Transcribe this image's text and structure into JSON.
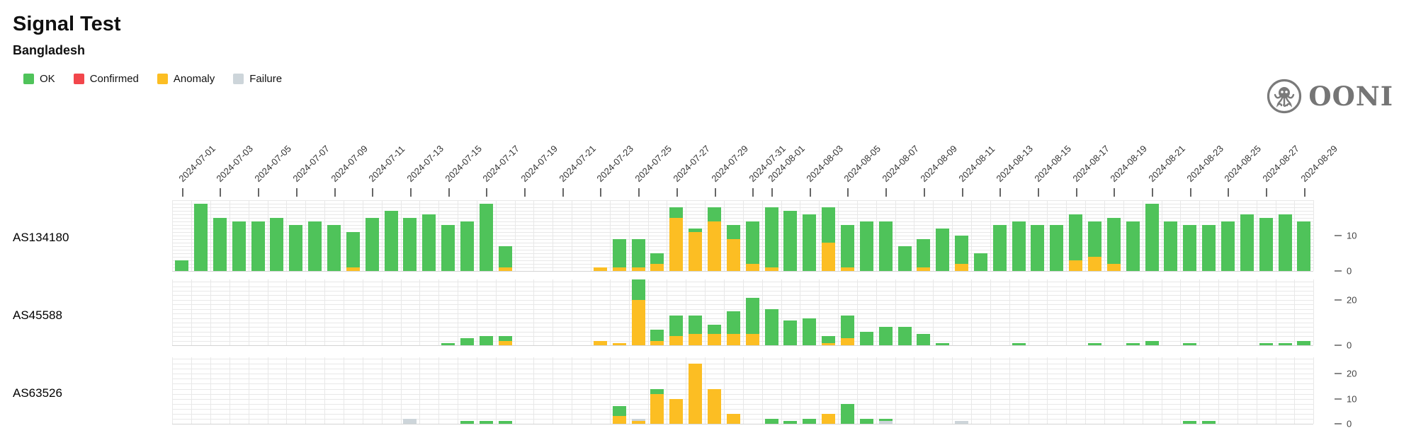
{
  "page": {
    "title": "Signal Test",
    "subtitle": "Bangladesh"
  },
  "logo": {
    "text": "OONI"
  },
  "legend": [
    {
      "label": "OK",
      "color_key": "ok"
    },
    {
      "label": "Confirmed",
      "color_key": "confirmed"
    },
    {
      "label": "Anomaly",
      "color_key": "anomaly"
    },
    {
      "label": "Failure",
      "color_key": "failure"
    }
  ],
  "chart_data": {
    "type": "bar",
    "stacked": true,
    "title": "Signal Test",
    "subtitle": "Bangladesh",
    "legend_position": "top-left",
    "grid": true,
    "stack_order_bottom_to_top": [
      "anomaly",
      "failure",
      "ok"
    ],
    "colors": {
      "ok": "#4fc35a",
      "confirmed": "#f2464b",
      "anomaly": "#fcbe23",
      "failure": "#cdd5da"
    },
    "dates": [
      "2024-07-01",
      "2024-07-02",
      "2024-07-03",
      "2024-07-04",
      "2024-07-05",
      "2024-07-06",
      "2024-07-07",
      "2024-07-08",
      "2024-07-09",
      "2024-07-10",
      "2024-07-11",
      "2024-07-12",
      "2024-07-13",
      "2024-07-14",
      "2024-07-15",
      "2024-07-16",
      "2024-07-17",
      "2024-07-18",
      "2024-07-19",
      "2024-07-20",
      "2024-07-21",
      "2024-07-22",
      "2024-07-23",
      "2024-07-24",
      "2024-07-25",
      "2024-07-26",
      "2024-07-27",
      "2024-07-28",
      "2024-07-29",
      "2024-07-30",
      "2024-07-31",
      "2024-08-01",
      "2024-08-02",
      "2024-08-03",
      "2024-08-04",
      "2024-08-05",
      "2024-08-06",
      "2024-08-07",
      "2024-08-08",
      "2024-08-09",
      "2024-08-10",
      "2024-08-11",
      "2024-08-12",
      "2024-08-13",
      "2024-08-14",
      "2024-08-15",
      "2024-08-16",
      "2024-08-17",
      "2024-08-18",
      "2024-08-19",
      "2024-08-20",
      "2024-08-21",
      "2024-08-22",
      "2024-08-23",
      "2024-08-24",
      "2024-08-25",
      "2024-08-26",
      "2024-08-27",
      "2024-08-28",
      "2024-08-29"
    ],
    "x_tick_labels": [
      "2024-07-01",
      "2024-07-03",
      "2024-07-05",
      "2024-07-07",
      "2024-07-09",
      "2024-07-11",
      "2024-07-13",
      "2024-07-15",
      "2024-07-17",
      "2024-07-19",
      "2024-07-21",
      "2024-07-23",
      "2024-07-25",
      "2024-07-27",
      "2024-07-29",
      "2024-07-31",
      "2024-08-01",
      "2024-08-03",
      "2024-08-05",
      "2024-08-07",
      "2024-08-09",
      "2024-08-11",
      "2024-08-13",
      "2024-08-15",
      "2024-08-17",
      "2024-08-19",
      "2024-08-21",
      "2024-08-23",
      "2024-08-25",
      "2024-08-27",
      "2024-08-29"
    ],
    "rows": [
      {
        "label": "AS134180",
        "ylim": [
          0,
          20
        ],
        "grid_step": 1,
        "yticks": [
          {
            "v": 10,
            "label": "10"
          },
          {
            "v": 0,
            "label": "0"
          }
        ],
        "bars": [
          {
            "date": "2024-07-01",
            "ok": 3
          },
          {
            "date": "2024-07-02",
            "ok": 19
          },
          {
            "date": "2024-07-03",
            "ok": 15
          },
          {
            "date": "2024-07-04",
            "ok": 14
          },
          {
            "date": "2024-07-05",
            "ok": 14
          },
          {
            "date": "2024-07-06",
            "ok": 15
          },
          {
            "date": "2024-07-07",
            "ok": 13
          },
          {
            "date": "2024-07-08",
            "ok": 14
          },
          {
            "date": "2024-07-09",
            "ok": 13
          },
          {
            "date": "2024-07-10",
            "ok": 10,
            "anomaly": 1
          },
          {
            "date": "2024-07-11",
            "ok": 15
          },
          {
            "date": "2024-07-12",
            "ok": 17
          },
          {
            "date": "2024-07-13",
            "ok": 15
          },
          {
            "date": "2024-07-14",
            "ok": 16
          },
          {
            "date": "2024-07-15",
            "ok": 13
          },
          {
            "date": "2024-07-16",
            "ok": 14
          },
          {
            "date": "2024-07-17",
            "ok": 19
          },
          {
            "date": "2024-07-18",
            "ok": 6,
            "anomaly": 1
          },
          {
            "date": "2024-07-23",
            "anomaly": 1
          },
          {
            "date": "2024-07-24",
            "ok": 8,
            "anomaly": 1
          },
          {
            "date": "2024-07-25",
            "ok": 8,
            "anomaly": 1
          },
          {
            "date": "2024-07-26",
            "ok": 3,
            "anomaly": 2
          },
          {
            "date": "2024-07-27",
            "ok": 3,
            "anomaly": 15
          },
          {
            "date": "2024-07-28",
            "ok": 1,
            "anomaly": 11
          },
          {
            "date": "2024-07-29",
            "ok": 4,
            "anomaly": 14
          },
          {
            "date": "2024-07-30",
            "ok": 4,
            "anomaly": 9
          },
          {
            "date": "2024-07-31",
            "ok": 12,
            "anomaly": 2
          },
          {
            "date": "2024-08-01",
            "ok": 17,
            "anomaly": 1
          },
          {
            "date": "2024-08-02",
            "ok": 17
          },
          {
            "date": "2024-08-03",
            "ok": 16
          },
          {
            "date": "2024-08-04",
            "ok": 10,
            "anomaly": 8
          },
          {
            "date": "2024-08-05",
            "ok": 12,
            "anomaly": 1
          },
          {
            "date": "2024-08-06",
            "ok": 14
          },
          {
            "date": "2024-08-07",
            "ok": 14
          },
          {
            "date": "2024-08-08",
            "ok": 7
          },
          {
            "date": "2024-08-09",
            "ok": 8,
            "anomaly": 1
          },
          {
            "date": "2024-08-10",
            "ok": 12
          },
          {
            "date": "2024-08-11",
            "ok": 8,
            "anomaly": 2
          },
          {
            "date": "2024-08-12",
            "ok": 5
          },
          {
            "date": "2024-08-13",
            "ok": 13
          },
          {
            "date": "2024-08-14",
            "ok": 14
          },
          {
            "date": "2024-08-15",
            "ok": 13
          },
          {
            "date": "2024-08-16",
            "ok": 13
          },
          {
            "date": "2024-08-17",
            "ok": 13,
            "anomaly": 3
          },
          {
            "date": "2024-08-18",
            "ok": 10,
            "anomaly": 4
          },
          {
            "date": "2024-08-19",
            "ok": 13,
            "anomaly": 2
          },
          {
            "date": "2024-08-20",
            "ok": 14
          },
          {
            "date": "2024-08-21",
            "ok": 19
          },
          {
            "date": "2024-08-22",
            "ok": 14
          },
          {
            "date": "2024-08-23",
            "ok": 13
          },
          {
            "date": "2024-08-24",
            "ok": 13
          },
          {
            "date": "2024-08-25",
            "ok": 14
          },
          {
            "date": "2024-08-26",
            "ok": 16
          },
          {
            "date": "2024-08-27",
            "ok": 15
          },
          {
            "date": "2024-08-28",
            "ok": 16
          },
          {
            "date": "2024-08-29",
            "ok": 14
          }
        ]
      },
      {
        "label": "AS45588",
        "ylim": [
          0,
          29
        ],
        "grid_step": 2,
        "yticks": [
          {
            "v": 20,
            "label": "20"
          },
          {
            "v": 0,
            "label": "0"
          }
        ],
        "bars": [
          {
            "date": "2024-07-15",
            "ok": 1
          },
          {
            "date": "2024-07-16",
            "ok": 3
          },
          {
            "date": "2024-07-17",
            "ok": 4
          },
          {
            "date": "2024-07-18",
            "ok": 2,
            "anomaly": 2
          },
          {
            "date": "2024-07-23",
            "anomaly": 2
          },
          {
            "date": "2024-07-24",
            "anomaly": 1
          },
          {
            "date": "2024-07-25",
            "ok": 9,
            "anomaly": 20
          },
          {
            "date": "2024-07-26",
            "ok": 5,
            "anomaly": 2
          },
          {
            "date": "2024-07-27",
            "ok": 9,
            "anomaly": 4
          },
          {
            "date": "2024-07-28",
            "ok": 8,
            "anomaly": 5
          },
          {
            "date": "2024-07-29",
            "ok": 4,
            "anomaly": 5
          },
          {
            "date": "2024-07-30",
            "ok": 10,
            "anomaly": 5
          },
          {
            "date": "2024-07-31",
            "ok": 16,
            "anomaly": 5
          },
          {
            "date": "2024-08-01",
            "ok": 16
          },
          {
            "date": "2024-08-02",
            "ok": 11
          },
          {
            "date": "2024-08-03",
            "ok": 12
          },
          {
            "date": "2024-08-04",
            "ok": 3,
            "anomaly": 1
          },
          {
            "date": "2024-08-05",
            "ok": 10,
            "anomaly": 3
          },
          {
            "date": "2024-08-06",
            "ok": 6
          },
          {
            "date": "2024-08-07",
            "ok": 8
          },
          {
            "date": "2024-08-08",
            "ok": 8
          },
          {
            "date": "2024-08-09",
            "ok": 5
          },
          {
            "date": "2024-08-10",
            "ok": 1
          },
          {
            "date": "2024-08-14",
            "ok": 1
          },
          {
            "date": "2024-08-18",
            "ok": 1
          },
          {
            "date": "2024-08-20",
            "ok": 1
          },
          {
            "date": "2024-08-21",
            "ok": 2
          },
          {
            "date": "2024-08-23",
            "ok": 1
          },
          {
            "date": "2024-08-27",
            "ok": 1
          },
          {
            "date": "2024-08-28",
            "ok": 1
          },
          {
            "date": "2024-08-29",
            "ok": 2
          }
        ]
      },
      {
        "label": "AS63526",
        "ylim": [
          0,
          26.6
        ],
        "grid_step": 2,
        "yticks": [
          {
            "v": 20,
            "label": "20"
          },
          {
            "v": 10,
            "label": "10"
          },
          {
            "v": 0,
            "label": "0"
          }
        ],
        "bars": [
          {
            "date": "2024-07-13",
            "failure": 2
          },
          {
            "date": "2024-07-16",
            "ok": 1
          },
          {
            "date": "2024-07-17",
            "ok": 1
          },
          {
            "date": "2024-07-18",
            "ok": 1
          },
          {
            "date": "2024-07-24",
            "ok": 4,
            "anomaly": 3
          },
          {
            "date": "2024-07-25",
            "anomaly": 1,
            "failure": 1
          },
          {
            "date": "2024-07-26",
            "ok": 2,
            "anomaly": 12
          },
          {
            "date": "2024-07-27",
            "anomaly": 10
          },
          {
            "date": "2024-07-28",
            "anomaly": 24
          },
          {
            "date": "2024-07-29",
            "anomaly": 14
          },
          {
            "date": "2024-07-30",
            "anomaly": 4
          },
          {
            "date": "2024-08-01",
            "ok": 2
          },
          {
            "date": "2024-08-02",
            "ok": 1
          },
          {
            "date": "2024-08-03",
            "ok": 2
          },
          {
            "date": "2024-08-04",
            "anomaly": 4
          },
          {
            "date": "2024-08-05",
            "ok": 8
          },
          {
            "date": "2024-08-06",
            "ok": 2
          },
          {
            "date": "2024-08-07",
            "ok": 1,
            "failure": 1
          },
          {
            "date": "2024-08-11",
            "failure": 1
          },
          {
            "date": "2024-08-23",
            "ok": 1
          },
          {
            "date": "2024-08-24",
            "ok": 1
          }
        ]
      }
    ]
  }
}
